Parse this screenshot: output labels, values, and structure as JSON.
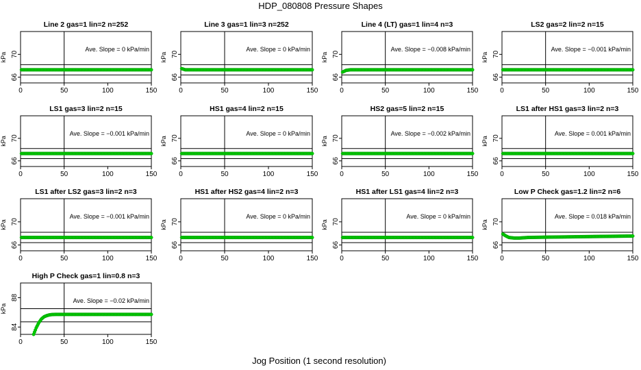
{
  "figure": {
    "title": "HDP_080808  Pressure Shapes",
    "xlabel": "Jog Position (1 second resolution)"
  },
  "colors": {
    "series": "#00cc00",
    "axes": "#000000"
  },
  "chart_data": [
    {
      "type": "scatter",
      "title": "Line 2 gas=1 lin=2 n=252",
      "ylabel": "kPa",
      "xlim": [
        0,
        150
      ],
      "ylim": [
        65,
        74
      ],
      "xticks": [
        0,
        50,
        100,
        150
      ],
      "yticks": [
        66,
        70
      ],
      "hlines": [
        66.4,
        68.2
      ],
      "vline": 50,
      "annotation": "Ave. Slope =  0  kPa/min",
      "x": [
        1,
        150
      ],
      "y": [
        67.3,
        67.3
      ]
    },
    {
      "type": "scatter",
      "title": "Line 3 gas=1 lin=3 n=252",
      "ylabel": "kPa",
      "xlim": [
        0,
        150
      ],
      "ylim": [
        65,
        74
      ],
      "xticks": [
        0,
        50,
        100,
        150
      ],
      "yticks": [
        66,
        70
      ],
      "hlines": [
        66.4,
        68.2
      ],
      "vline": 50,
      "annotation": "Ave. Slope =  0  kPa/min",
      "x": [
        1,
        5,
        150
      ],
      "y": [
        67.5,
        67.3,
        67.3
      ]
    },
    {
      "type": "scatter",
      "title": "Line 4 (LT) gas=1 lin=4 n=3",
      "ylabel": "kPa",
      "xlim": [
        0,
        150
      ],
      "ylim": [
        65,
        74
      ],
      "xticks": [
        0,
        50,
        100,
        150
      ],
      "yticks": [
        66,
        70
      ],
      "hlines": [
        66.4,
        68.2
      ],
      "vline": 50,
      "annotation": "Ave. Slope =  −0.008  kPa/min",
      "x": [
        1,
        5,
        10,
        150
      ],
      "y": [
        66.9,
        67.2,
        67.3,
        67.3
      ]
    },
    {
      "type": "scatter",
      "title": "LS2 gas=2 lin=2 n=15",
      "ylabel": "kPa",
      "xlim": [
        0,
        150
      ],
      "ylim": [
        65,
        74
      ],
      "xticks": [
        0,
        50,
        100,
        150
      ],
      "yticks": [
        66,
        70
      ],
      "hlines": [
        66.4,
        68.2
      ],
      "vline": 50,
      "annotation": "Ave. Slope =  −0.001  kPa/min",
      "x": [
        1,
        150
      ],
      "y": [
        67.3,
        67.3
      ]
    },
    {
      "type": "scatter",
      "title": "LS1 gas=3 lin=2 n=15",
      "ylabel": "kPa",
      "xlim": [
        0,
        150
      ],
      "ylim": [
        65,
        74
      ],
      "xticks": [
        0,
        50,
        100,
        150
      ],
      "yticks": [
        66,
        70
      ],
      "hlines": [
        66.4,
        68.2
      ],
      "vline": 50,
      "annotation": "Ave. Slope =  −0.001  kPa/min",
      "x": [
        1,
        150
      ],
      "y": [
        67.3,
        67.3
      ]
    },
    {
      "type": "scatter",
      "title": "HS1 gas=4 lin=2 n=15",
      "ylabel": "kPa",
      "xlim": [
        0,
        150
      ],
      "ylim": [
        65,
        74
      ],
      "xticks": [
        0,
        50,
        100,
        150
      ],
      "yticks": [
        66,
        70
      ],
      "hlines": [
        66.4,
        68.2
      ],
      "vline": 50,
      "annotation": "Ave. Slope =  0  kPa/min",
      "x": [
        1,
        150
      ],
      "y": [
        67.3,
        67.3
      ]
    },
    {
      "type": "scatter",
      "title": "HS2 gas=5 lin=2 n=15",
      "ylabel": "kPa",
      "xlim": [
        0,
        150
      ],
      "ylim": [
        65,
        74
      ],
      "xticks": [
        0,
        50,
        100,
        150
      ],
      "yticks": [
        66,
        70
      ],
      "hlines": [
        66.4,
        68.2
      ],
      "vline": 50,
      "annotation": "Ave. Slope =  −0.002  kPa/min",
      "x": [
        1,
        150
      ],
      "y": [
        67.3,
        67.3
      ]
    },
    {
      "type": "scatter",
      "title": "LS1 after HS1 gas=3 lin=2 n=3",
      "ylabel": "kPa",
      "xlim": [
        0,
        150
      ],
      "ylim": [
        65,
        74
      ],
      "xticks": [
        0,
        50,
        100,
        150
      ],
      "yticks": [
        66,
        70
      ],
      "hlines": [
        66.4,
        68.2
      ],
      "vline": 50,
      "annotation": "Ave. Slope =  0.001  kPa/min",
      "x": [
        1,
        150
      ],
      "y": [
        67.3,
        67.3
      ]
    },
    {
      "type": "scatter",
      "title": "LS1 after LS2 gas=3 lin=2 n=3",
      "ylabel": "kPa",
      "xlim": [
        0,
        150
      ],
      "ylim": [
        65,
        74
      ],
      "xticks": [
        0,
        50,
        100,
        150
      ],
      "yticks": [
        66,
        70
      ],
      "hlines": [
        66.4,
        68.2
      ],
      "vline": 50,
      "annotation": "Ave. Slope =  −0.001  kPa/min",
      "x": [
        1,
        150
      ],
      "y": [
        67.3,
        67.3
      ]
    },
    {
      "type": "scatter",
      "title": "HS1 after HS2 gas=4 lin=2 n=3",
      "ylabel": "kPa",
      "xlim": [
        0,
        150
      ],
      "ylim": [
        65,
        74
      ],
      "xticks": [
        0,
        50,
        100,
        150
      ],
      "yticks": [
        66,
        70
      ],
      "hlines": [
        66.4,
        68.2
      ],
      "vline": 50,
      "annotation": "Ave. Slope =  0  kPa/min",
      "x": [
        1,
        150
      ],
      "y": [
        67.3,
        67.3
      ]
    },
    {
      "type": "scatter",
      "title": "HS1 after LS1 gas=4 lin=2 n=3",
      "ylabel": "kPa",
      "xlim": [
        0,
        150
      ],
      "ylim": [
        65,
        74
      ],
      "xticks": [
        0,
        50,
        100,
        150
      ],
      "yticks": [
        66,
        70
      ],
      "hlines": [
        66.4,
        68.2
      ],
      "vline": 50,
      "annotation": "Ave. Slope =  0  kPa/min",
      "x": [
        1,
        150
      ],
      "y": [
        67.3,
        67.3
      ]
    },
    {
      "type": "scatter",
      "title": "Low P Check gas=1.2 lin=2 n=6",
      "ylabel": "kPa",
      "xlim": [
        0,
        150
      ],
      "ylim": [
        65,
        74
      ],
      "xticks": [
        0,
        50,
        100,
        150
      ],
      "yticks": [
        66,
        70
      ],
      "hlines": [
        66.4,
        68.2
      ],
      "vline": 50,
      "annotation": "Ave. Slope =  0.018  kPa/min",
      "x": [
        1,
        4,
        8,
        14,
        20,
        30,
        50,
        100,
        150
      ],
      "y": [
        67.9,
        67.6,
        67.3,
        67.2,
        67.2,
        67.3,
        67.35,
        67.45,
        67.55
      ]
    },
    {
      "type": "scatter",
      "title": "High P Check gas=1 lin=0.8 n=3",
      "ylabel": "kPa",
      "xlim": [
        0,
        150
      ],
      "ylim": [
        83,
        90
      ],
      "xticks": [
        0,
        50,
        100,
        150
      ],
      "yticks": [
        84,
        88
      ],
      "hlines": [
        84.7,
        86.5
      ],
      "vline": 50,
      "annotation": "Ave. Slope =  −0.02  kPa/min",
      "x": [
        15,
        18,
        21,
        24,
        27,
        30,
        33,
        36,
        40,
        45,
        50,
        100,
        150
      ],
      "y": [
        83,
        83.9,
        84.6,
        85.1,
        85.4,
        85.55,
        85.65,
        85.7,
        85.72,
        85.72,
        85.72,
        85.72,
        85.72
      ]
    }
  ]
}
